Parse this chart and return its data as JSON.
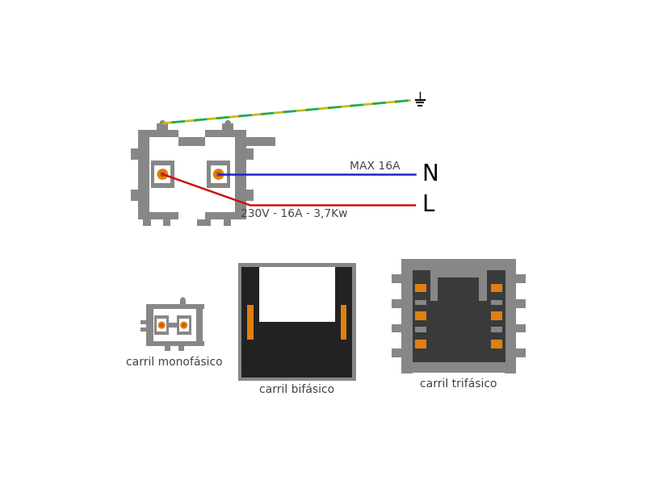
{
  "bg_color": "#ffffff",
  "gray": "#878787",
  "gray_dark": "#555555",
  "gray_light": "#aaaaaa",
  "orange": "#e08010",
  "black_inner": "#222222",
  "blue": "#2222cc",
  "red": "#cc1111",
  "yellow": "#ddcc00",
  "green": "#44bb44",
  "text_color": "#444444",
  "label_n": "N",
  "label_l": "L",
  "label_max": "MAX 16A",
  "label_spec": "230V - 16A - 3,7Kw",
  "label_mono": "carril monofásico",
  "label_bi": "carril bifásico",
  "label_tri": "carril trifásico",
  "font_label": 20,
  "font_small": 10,
  "font_spec": 9
}
